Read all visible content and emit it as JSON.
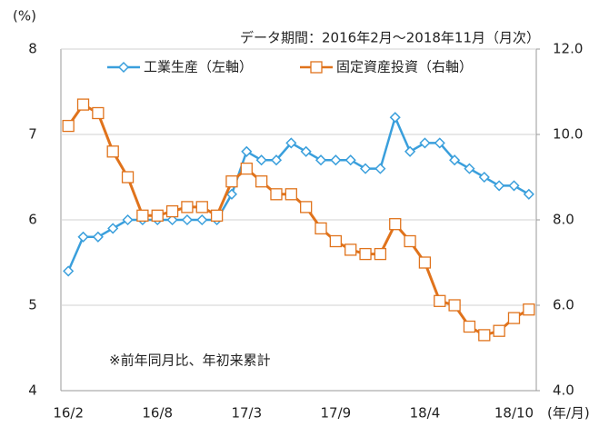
{
  "chart_data": {
    "type": "line",
    "subtitle": "データ期間：2016年2月～2018年11月（月次）",
    "y_label": "(%)",
    "x_label": "(年/月)",
    "annotation": "※前年同月比、年初来累計",
    "categories": [
      "16/2",
      null,
      null,
      null,
      null,
      null,
      "16/8",
      null,
      null,
      null,
      null,
      null,
      "17/3",
      null,
      null,
      null,
      null,
      null,
      "17/9",
      null,
      null,
      null,
      null,
      null,
      "18/4",
      null,
      null,
      null,
      null,
      null,
      "18/10",
      null
    ],
    "series": [
      {
        "name": "工業生産（左軸）",
        "color": "#3a9fdc",
        "marker": "diamond",
        "axis": "y",
        "values": [
          5.4,
          5.8,
          5.8,
          5.9,
          6.0,
          6.0,
          6.0,
          6.0,
          6.0,
          6.0,
          6.0,
          6.3,
          6.8,
          6.7,
          6.7,
          6.9,
          6.8,
          6.7,
          6.7,
          6.7,
          6.6,
          6.6,
          7.2,
          6.8,
          6.9,
          6.9,
          6.7,
          6.6,
          6.5,
          6.4,
          6.4,
          6.3
        ]
      },
      {
        "name": "固定資産投資（右軸）",
        "color": "#e0731c",
        "marker": "square",
        "axis": "y2",
        "values": [
          10.2,
          10.7,
          10.5,
          9.6,
          9.0,
          8.1,
          8.1,
          8.2,
          8.3,
          8.3,
          8.1,
          8.9,
          9.2,
          8.9,
          8.6,
          8.6,
          8.3,
          7.8,
          7.5,
          7.3,
          7.2,
          7.2,
          7.9,
          7.5,
          7.0,
          6.1,
          6.0,
          5.5,
          5.3,
          5.4,
          5.7,
          5.9
        ]
      }
    ],
    "ylim": [
      4,
      8
    ],
    "yticks": [
      4,
      5,
      6,
      7,
      8
    ],
    "y2lim": [
      4,
      12
    ],
    "y2ticks": [
      {
        "value": 4,
        "label": "4.0"
      },
      {
        "value": 6,
        "label": "6.0"
      },
      {
        "value": 8,
        "label": "8.0"
      },
      {
        "value": 10,
        "label": "10.0"
      },
      {
        "value": 12,
        "label": "12.0"
      }
    ],
    "grid": true,
    "legend": "top"
  }
}
